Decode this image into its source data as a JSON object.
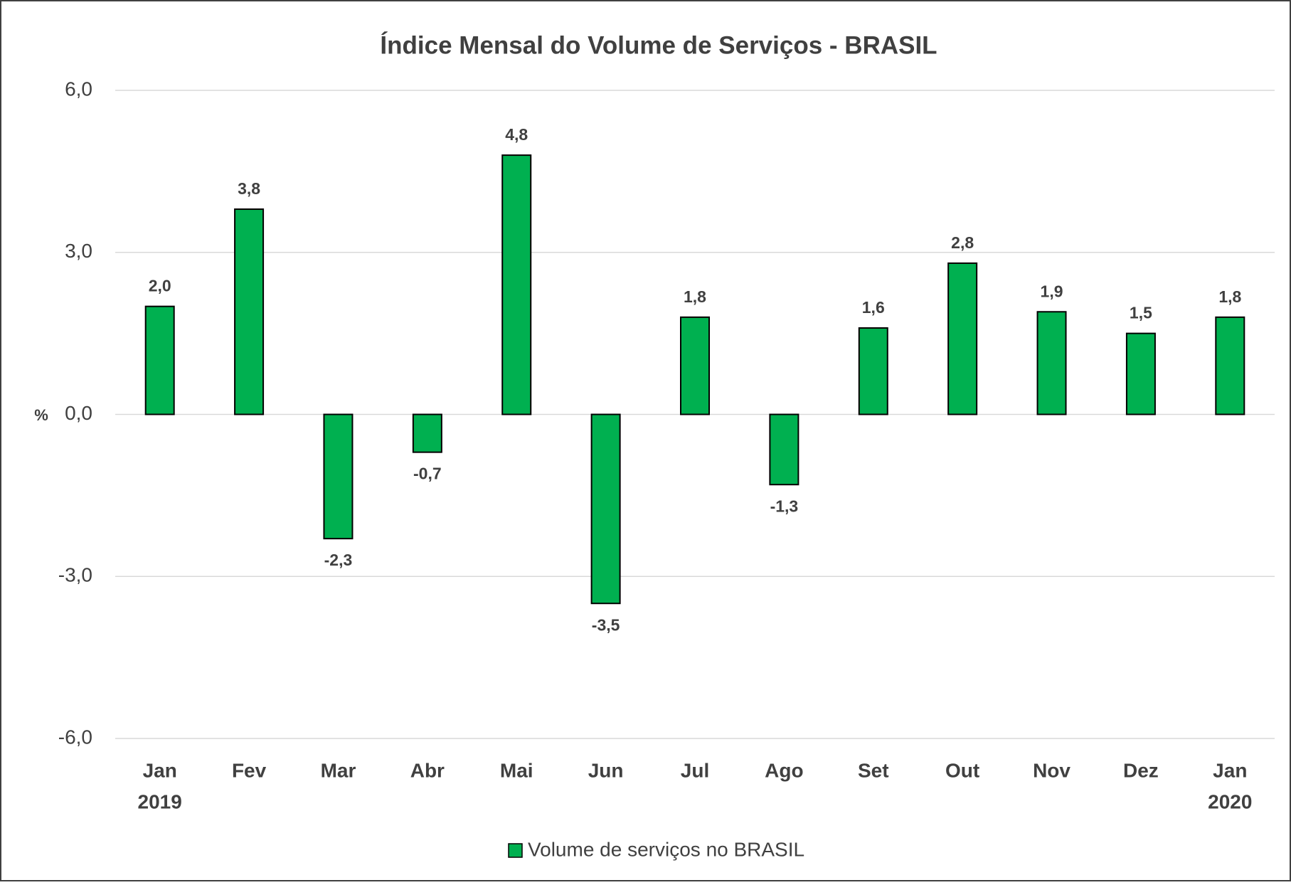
{
  "chart_data": {
    "type": "bar",
    "title": "Índice Mensal do Volume de Serviços - BRASIL",
    "y_axis_label": "%",
    "categories": [
      "Jan",
      "Fev",
      "Mar",
      "Abr",
      "Mai",
      "Jun",
      "Jul",
      "Ago",
      "Set",
      "Out",
      "Nov",
      "Dez",
      "Jan"
    ],
    "category_sublabels": [
      "2019",
      null,
      null,
      null,
      null,
      null,
      null,
      null,
      null,
      null,
      null,
      null,
      "2020"
    ],
    "series": [
      {
        "name": "Volume de serviços no BRASIL",
        "color": "#00b050",
        "values": [
          2.0,
          3.8,
          -2.3,
          -0.7,
          4.8,
          -3.5,
          1.8,
          -1.3,
          1.6,
          2.8,
          1.9,
          1.5,
          1.8
        ],
        "value_labels": [
          "2,0",
          "3,8",
          "-2,3",
          "-0,7",
          "4,8",
          "-3,5",
          "1,8",
          "-1,3",
          "1,6",
          "2,8",
          "1,9",
          "1,5",
          "1,8"
        ]
      }
    ],
    "ylim": [
      -6,
      6
    ],
    "yticks": [
      {
        "value": -6,
        "label": "-6,0"
      },
      {
        "value": -3,
        "label": "-3,0"
      },
      {
        "value": 0,
        "label": "0,0"
      },
      {
        "value": 3,
        "label": "3,0"
      },
      {
        "value": 6,
        "label": "6,0"
      }
    ],
    "grid": true,
    "legend": "bottom"
  }
}
